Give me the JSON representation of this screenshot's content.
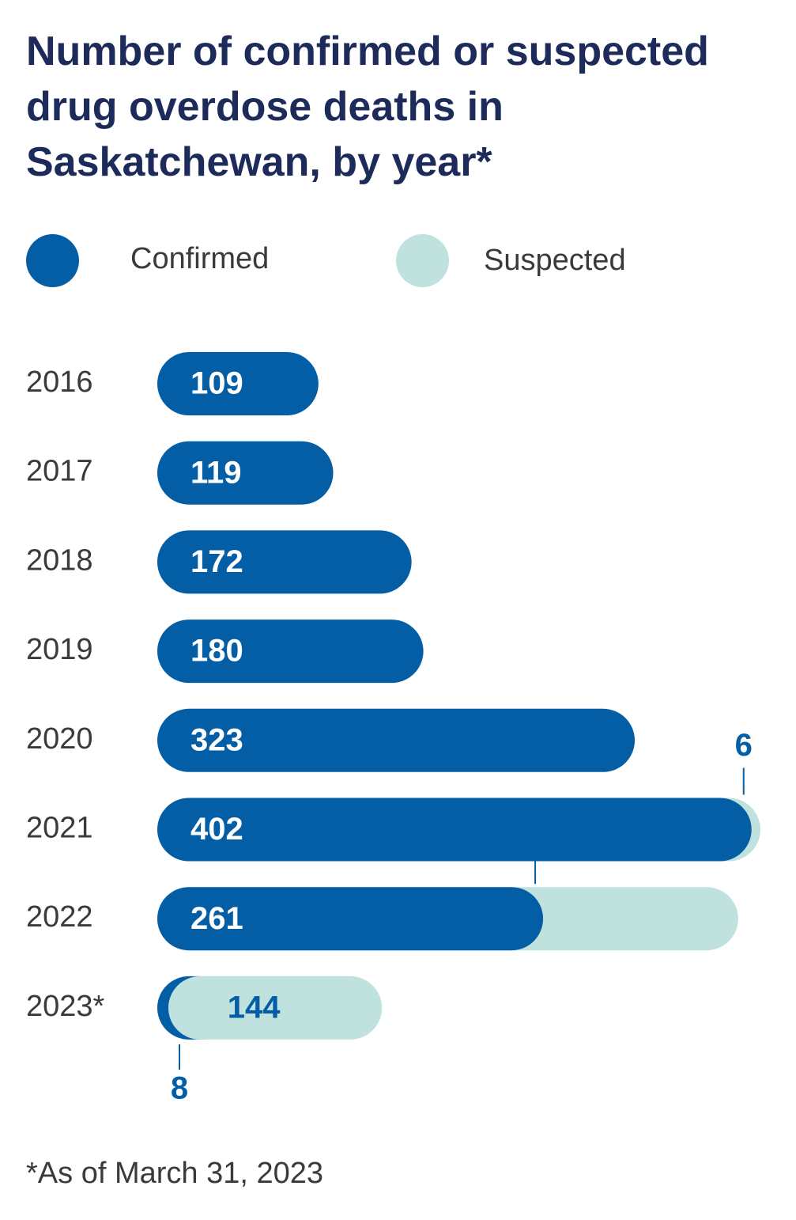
{
  "title_lines": [
    "Number of confirmed or suspected",
    "drug overdose deaths in",
    "Saskatchewan, by year*"
  ],
  "legend": {
    "confirmed": "Confirmed",
    "suspected": "Suspected"
  },
  "colors": {
    "confirmed": "#035ea6",
    "suspected": "#c0e2df",
    "title": "#1d2b5a",
    "text": "#3a3a3a"
  },
  "footnote": "*As of March 31, 2023",
  "chart_data": {
    "type": "bar",
    "orientation": "horizontal",
    "stacked": true,
    "title": "Number of confirmed or suspected drug overdose deaths in Saskatchewan, by year*",
    "categories": [
      "2016",
      "2017",
      "2018",
      "2019",
      "2020",
      "2021",
      "2022",
      "2023*"
    ],
    "series": [
      {
        "name": "Confirmed",
        "values": [
          109,
          119,
          172,
          180,
          323,
          402,
          261,
          8
        ]
      },
      {
        "name": "Suspected",
        "values": [
          0,
          0,
          0,
          0,
          0,
          6,
          132,
          144
        ]
      }
    ],
    "legend": "top",
    "grid": false
  }
}
